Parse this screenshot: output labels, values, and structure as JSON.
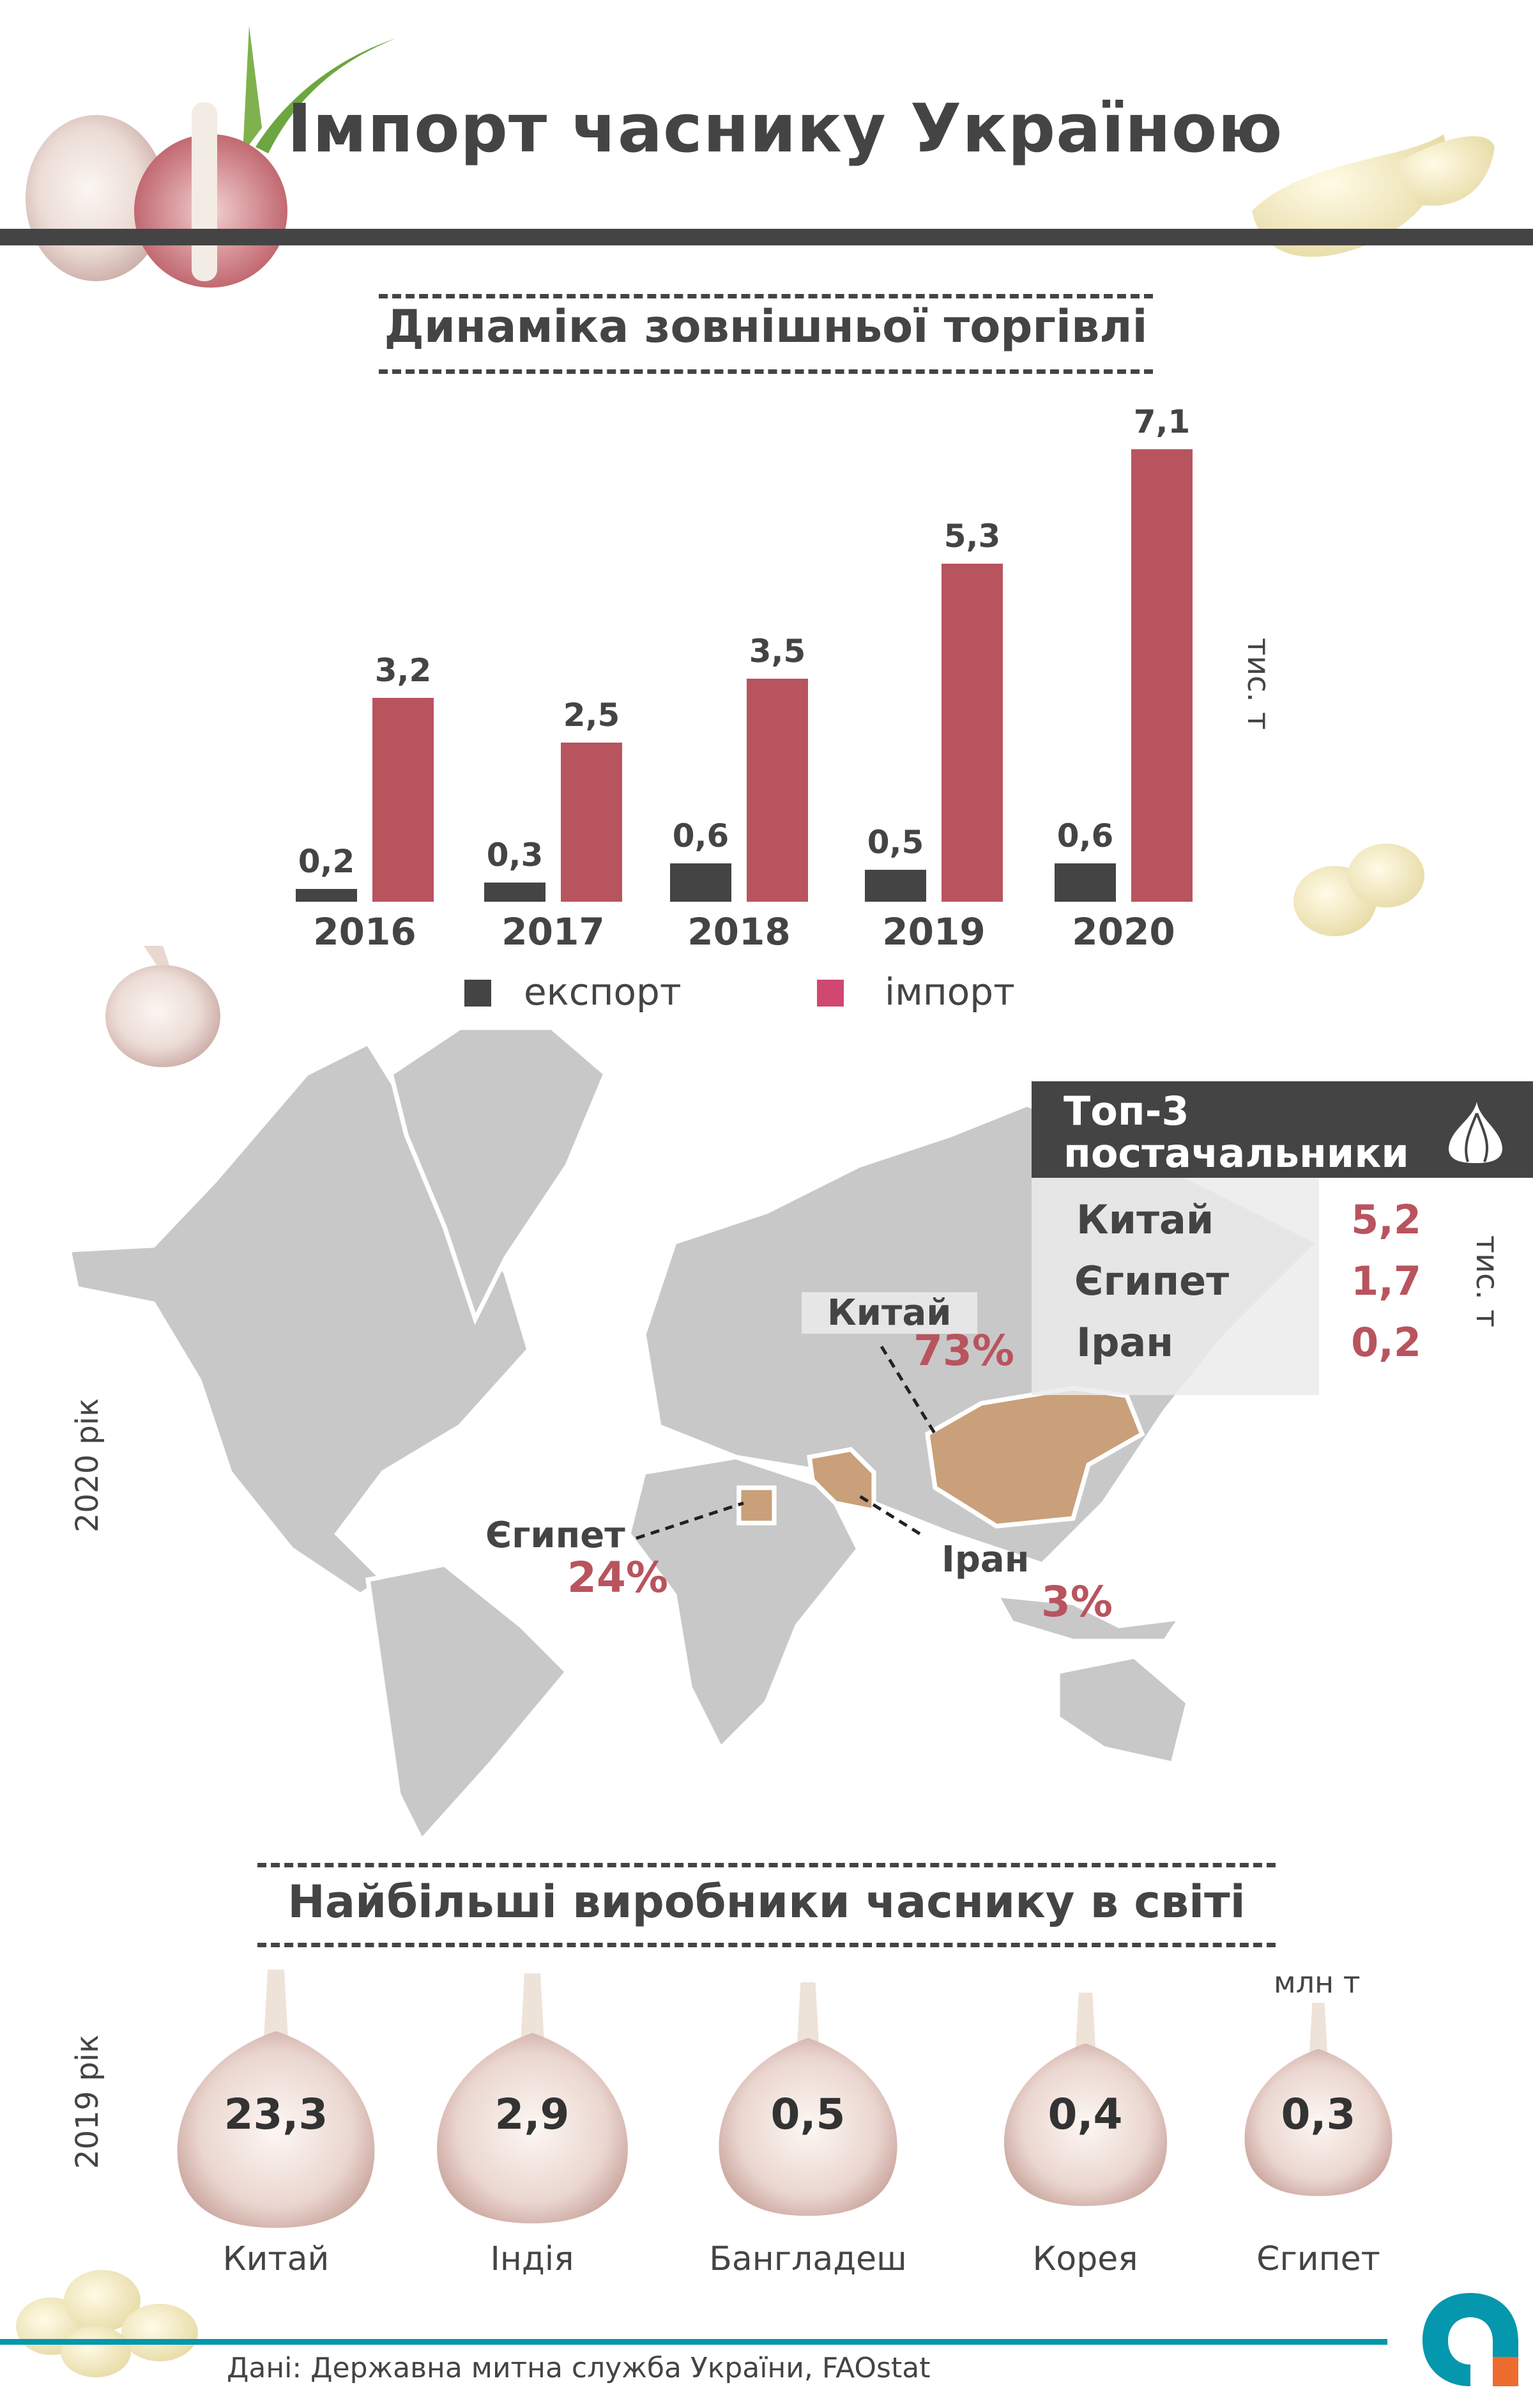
{
  "header": {
    "title": "Імпорт часнику Україною"
  },
  "trade": {
    "subtitle": "Динаміка зовнішньої торгівлі",
    "unit": "тис. т"
  },
  "chart_data": {
    "type": "bar",
    "title": "Динаміка зовнішньої торгівлі",
    "ylabel": "тис. т",
    "categories": [
      "2016",
      "2017",
      "2018",
      "2019",
      "2020"
    ],
    "category_labels": [
      "2016",
      "2017",
      "2018",
      "2019",
      "2020"
    ],
    "series": [
      {
        "name": "експорт",
        "color": "#444444",
        "values": [
          0.2,
          0.3,
          0.6,
          0.5,
          0.6
        ],
        "labels": [
          "0,2",
          "0,3",
          "0,6",
          "0,5",
          "0,6"
        ]
      },
      {
        "name": "імпорт",
        "color": "#b8545e",
        "values": [
          3.2,
          2.5,
          3.5,
          5.3,
          7.1
        ],
        "labels": [
          "3,2",
          "2,5",
          "3,5",
          "5,3",
          "7,1"
        ]
      }
    ],
    "legend": {
      "position": "bottom",
      "items": [
        "експорт",
        "імпорт"
      ],
      "colors": [
        "#444444",
        "#d0476f"
      ]
    },
    "ylim": [
      0,
      7.1
    ],
    "grid": false
  },
  "map": {
    "year_label": "2020 рік",
    "highlight_color": "#c9a07a",
    "land_color": "#c8c8c8",
    "labels": [
      {
        "country": "Китай",
        "percent": "73%"
      },
      {
        "country": "Єгипет",
        "percent": "24%"
      },
      {
        "country": "Іран",
        "percent": "3%"
      }
    ]
  },
  "top3": {
    "title_line1": "Топ-3",
    "title_line2": "постачальники",
    "icon": "garlic-icon",
    "unit": "тис. т",
    "rows": [
      {
        "name": "Китай",
        "value": "5,2"
      },
      {
        "name": "Єгипет",
        "value": "1,7"
      },
      {
        "name": "Іран",
        "value": "0,2"
      }
    ]
  },
  "producers": {
    "title": "Найбільші виробники часнику в світі",
    "year_label": "2019 рік",
    "unit": "млн т",
    "items": [
      {
        "name": "Китай",
        "value": "23,3"
      },
      {
        "name": "Індія",
        "value": "2,9"
      },
      {
        "name": "Бангладеш",
        "value": "0,5"
      },
      {
        "name": "Корея",
        "value": "0,4"
      },
      {
        "name": "Єгипет",
        "value": "0,3"
      }
    ]
  },
  "footer": {
    "source": "Дані: Державна митна служба України, FAOstat",
    "accent": "#0497ad",
    "logo_accent": "#ee6b2f"
  }
}
